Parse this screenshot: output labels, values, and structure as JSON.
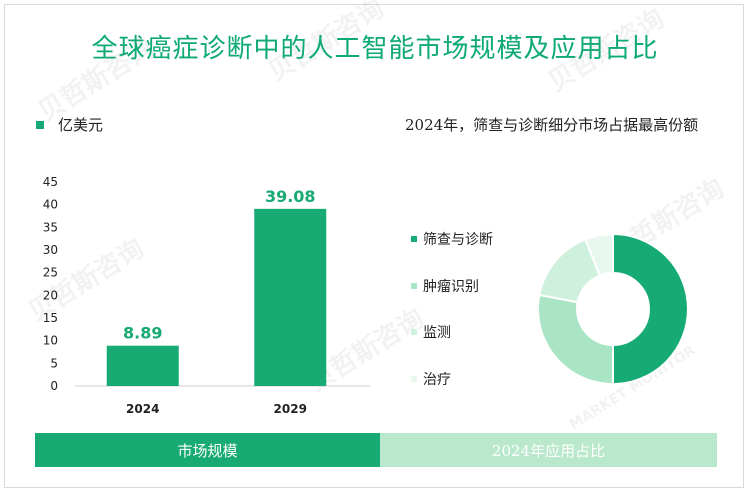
{
  "title": "全球癌症诊断中的人工智能市场规模及应用占比",
  "watermark": "贝哲斯咨询",
  "watermark_sub": "MARKET MONITOR",
  "unit_legend": "亿美元",
  "right_title": "2024年，筛查与诊断细分市场占据最高份额",
  "footer": {
    "left": "市场规模",
    "right": "2024年应用占比"
  },
  "colors": {
    "bar": "#17aa73",
    "label": "#17aa73",
    "footer_left": "#17aa73",
    "footer_right": "#b9e8cc"
  },
  "chart_data": [
    {
      "type": "bar",
      "categories": [
        "2024",
        "2029"
      ],
      "values": [
        8.89,
        39.08
      ],
      "data_labels": [
        "8.89",
        "39.08"
      ],
      "ylim": [
        0,
        45
      ],
      "yticks": [
        0,
        5,
        10,
        15,
        20,
        25,
        30,
        35,
        40,
        45
      ],
      "ylabel": "亿美元",
      "grid": false
    },
    {
      "type": "pie",
      "donut": true,
      "labels": [
        "筛查与诊断",
        "肿瘤识别",
        "监测",
        "治疗"
      ],
      "values": [
        50,
        28,
        16,
        6
      ],
      "colors": [
        "#16aa74",
        "#a9e4c4",
        "#d0f0de",
        "#e9f8ef"
      ]
    }
  ]
}
